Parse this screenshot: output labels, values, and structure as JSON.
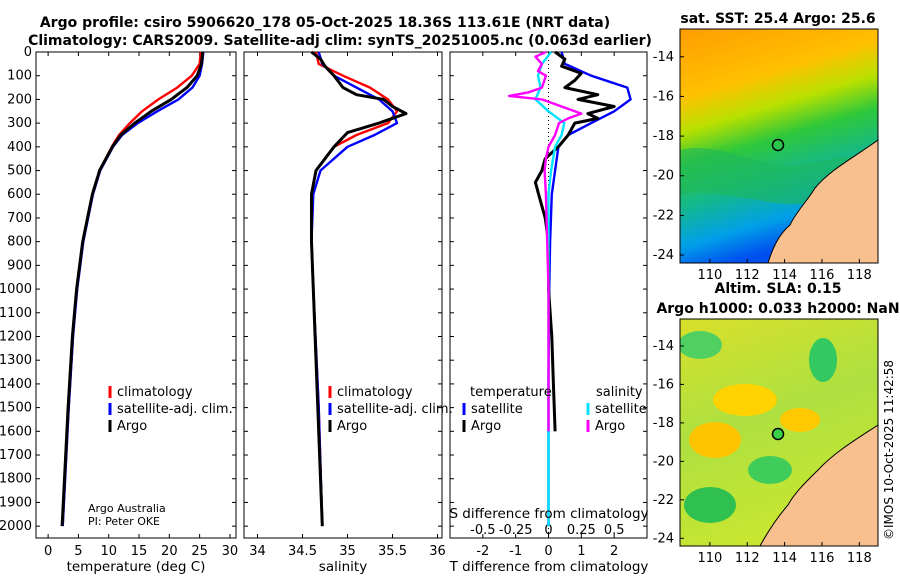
{
  "header": {
    "line1": "Argo profile: csiro 5906620_178 05-Oct-2025 18.36S 113.61E (NRT data)",
    "line2": "Climatology: CARS2009. Satellite-adj clim: synTS_20251005.nc (0.063d earlier)"
  },
  "credit": {
    "org": "Argo Australia",
    "pi": "PI: Peter OKE"
  },
  "watermark": "©IMOS 10-Oct-2025 11:42:58",
  "colors": {
    "climatology": "#ff0000",
    "satellite": "#0000ff",
    "argo": "#000000",
    "sat_salinity": "#00e5ff",
    "argo_salinity": "#ff00ff",
    "land": "#f9c08f"
  },
  "chart_data": [
    {
      "id": "temperature",
      "type": "line",
      "xlabel": "temperature (deg C)",
      "ylabel": "",
      "xlim": [
        -2,
        31
      ],
      "ylim": [
        0,
        2050
      ],
      "xticks": [
        0,
        5,
        10,
        15,
        20,
        25,
        30
      ],
      "yticks": [
        0,
        100,
        200,
        300,
        400,
        500,
        600,
        700,
        800,
        900,
        1000,
        1100,
        1200,
        1300,
        1400,
        1500,
        1600,
        1700,
        1800,
        1900,
        2000
      ],
      "legend": [
        "climatology",
        "satellite-adj. clim.",
        "Argo"
      ],
      "series": [
        {
          "name": "climatology",
          "color": "#ff0000",
          "depth": [
            0,
            50,
            100,
            150,
            200,
            250,
            300,
            350,
            400,
            500,
            600,
            700,
            800,
            1000,
            1200,
            1500,
            1800,
            2000
          ],
          "values": [
            25.2,
            25.0,
            23.7,
            21.3,
            18.2,
            15.5,
            13.5,
            11.7,
            10.5,
            8.5,
            7.3,
            6.5,
            5.7,
            4.7,
            4.1,
            3.4,
            2.8,
            2.4
          ]
        },
        {
          "name": "satellite-adj. clim.",
          "color": "#0000ff",
          "depth": [
            0,
            50,
            100,
            150,
            200,
            250,
            300,
            350,
            400,
            500,
            600,
            700,
            800,
            1000,
            1200,
            1500,
            1800,
            2000
          ],
          "values": [
            25.6,
            25.4,
            25.0,
            23.8,
            21.5,
            18.0,
            14.8,
            12.2,
            10.7,
            8.6,
            7.4,
            6.6,
            5.8,
            4.8,
            4.1,
            3.4,
            2.8,
            2.4
          ]
        },
        {
          "name": "Argo",
          "color": "#000000",
          "depth": [
            0,
            50,
            100,
            150,
            200,
            250,
            300,
            350,
            400,
            500,
            600,
            700,
            800,
            1000,
            1200,
            1500,
            1800,
            2000
          ],
          "values": [
            25.5,
            25.3,
            24.6,
            22.9,
            20.3,
            17.0,
            14.3,
            12.0,
            10.6,
            8.5,
            7.3,
            6.5,
            5.7,
            4.7,
            4.0,
            3.3,
            2.7,
            2.3
          ]
        }
      ]
    },
    {
      "id": "salinity",
      "type": "line",
      "xlabel": "salinity",
      "xlim": [
        33.85,
        36.05
      ],
      "ylim": [
        0,
        2050
      ],
      "xticks": [
        34,
        34.5,
        35,
        35.5,
        36
      ],
      "legend": [
        "climatology",
        "satellite-adj. clim.",
        "Argo"
      ],
      "series": [
        {
          "name": "climatology",
          "color": "#ff0000",
          "depth": [
            0,
            50,
            100,
            150,
            200,
            250,
            300,
            350,
            400,
            500,
            600,
            800,
            1000,
            1500,
            2000
          ],
          "values": [
            34.65,
            34.68,
            34.95,
            35.25,
            35.45,
            35.55,
            35.45,
            35.1,
            34.85,
            34.65,
            34.6,
            34.6,
            34.62,
            34.68,
            34.72
          ]
        },
        {
          "name": "satellite-adj. clim.",
          "color": "#0000ff",
          "depth": [
            0,
            50,
            100,
            150,
            200,
            250,
            300,
            350,
            400,
            500,
            600,
            800,
            1000,
            1500,
            2000
          ],
          "values": [
            34.68,
            34.72,
            34.85,
            35.1,
            35.35,
            35.5,
            35.55,
            35.3,
            35.0,
            34.7,
            34.62,
            34.6,
            34.62,
            34.68,
            34.72
          ]
        },
        {
          "name": "Argo",
          "color": "#000000",
          "depth": [
            0,
            30,
            60,
            100,
            150,
            180,
            200,
            230,
            260,
            300,
            340,
            400,
            500,
            600,
            800,
            1000,
            1500,
            2000
          ],
          "values": [
            34.6,
            34.7,
            34.75,
            34.85,
            34.95,
            35.1,
            35.4,
            35.5,
            35.65,
            35.35,
            35.0,
            34.85,
            34.65,
            34.6,
            34.6,
            34.62,
            34.67,
            34.72
          ]
        }
      ]
    },
    {
      "id": "difference",
      "type": "line",
      "xlabel": "T difference from climatology",
      "x2label": "S difference from climatology",
      "xlim": [
        -3,
        3
      ],
      "x2lim": [
        -0.75,
        0.75
      ],
      "ylim": [
        0,
        2050
      ],
      "xticks": [
        -2,
        -1,
        0,
        1,
        2
      ],
      "x2ticks": [
        -0.5,
        -0.25,
        0,
        0.25,
        0.5
      ],
      "x2ticklabels": [
        "-0.5",
        "-0.25",
        "0",
        "0.25",
        "0.5"
      ],
      "legend_temperature_title": "temperature",
      "legend_salinity_title": "salinity",
      "legend_temperature": [
        "satellite",
        "Argo"
      ],
      "legend_salinity": [
        "satellite",
        "Argo"
      ],
      "series": [
        {
          "name": "temperature satellite",
          "axis": "T",
          "color": "#0000ff",
          "depth": [
            0,
            50,
            100,
            150,
            200,
            250,
            300,
            350,
            400,
            500,
            600,
            800,
            1000,
            1400,
            1800,
            2000
          ],
          "values": [
            0.4,
            0.5,
            1.3,
            2.4,
            2.5,
            2.0,
            1.3,
            0.6,
            0.3,
            0.2,
            0.1,
            0.05,
            0.02,
            0.0,
            0.0,
            0.0
          ]
        },
        {
          "name": "temperature Argo",
          "axis": "T",
          "color": "#000000",
          "depth": [
            0,
            30,
            60,
            90,
            120,
            150,
            180,
            200,
            230,
            260,
            280,
            300,
            350,
            400,
            450,
            500,
            550,
            600,
            650,
            700,
            800,
            1000,
            1200,
            1400,
            1600
          ],
          "values": [
            0.2,
            0.5,
            0.4,
            1.0,
            0.8,
            0.5,
            1.5,
            0.9,
            2.0,
            1.2,
            1.5,
            0.8,
            0.6,
            0.3,
            -0.1,
            -0.2,
            -0.4,
            -0.3,
            -0.2,
            -0.1,
            0.0,
            0.0,
            0.1,
            0.15,
            0.2
          ]
        },
        {
          "name": "salinity satellite",
          "axis": "S",
          "color": "#00e5ff",
          "depth": [
            0,
            50,
            100,
            150,
            200,
            250,
            300,
            350,
            400,
            500,
            600,
            800,
            1000,
            1400,
            1800,
            2000
          ],
          "values": [
            0.02,
            -0.05,
            -0.08,
            -0.06,
            -0.1,
            0.0,
            0.12,
            0.1,
            0.05,
            0.02,
            0.0,
            0.0,
            0.0,
            0.0,
            0.0,
            0.0
          ]
        },
        {
          "name": "salinity Argo",
          "axis": "S",
          "color": "#ff00ff",
          "depth": [
            0,
            20,
            50,
            80,
            100,
            150,
            170,
            185,
            200,
            230,
            260,
            280,
            300,
            350,
            400,
            450,
            500,
            600,
            800,
            1000,
            1400,
            1600
          ],
          "values": [
            -0.02,
            -0.1,
            -0.05,
            -0.08,
            -0.02,
            -0.05,
            -0.15,
            -0.3,
            -0.05,
            0.1,
            0.25,
            0.15,
            0.08,
            0.05,
            0.0,
            -0.02,
            -0.03,
            -0.02,
            -0.01,
            0.0,
            0.0,
            0.0
          ]
        }
      ]
    },
    {
      "id": "sst_map",
      "type": "heatmap",
      "title": "sat. SST: 25.4 Argo: 25.6",
      "xticks": [
        110,
        112,
        114,
        116,
        118
      ],
      "yticks": [
        -14,
        -16,
        -18,
        -20,
        -22,
        -24
      ],
      "xlim": [
        108.4,
        119.0
      ],
      "ylim": [
        -24.4,
        -12.6
      ],
      "argo_position": {
        "lon": 113.61,
        "lat": -18.36
      }
    },
    {
      "id": "sla_map",
      "type": "heatmap",
      "title1": "Altim. SLA: 0.15",
      "title2": "Argo h1000: 0.033 h2000: NaN",
      "xticks": [
        110,
        112,
        114,
        116,
        118
      ],
      "yticks": [
        -14,
        -16,
        -18,
        -20,
        -22,
        -24
      ],
      "xlim": [
        108.4,
        119.0
      ],
      "ylim": [
        -24.4,
        -12.6
      ],
      "argo_position": {
        "lon": 113.61,
        "lat": -18.36
      }
    }
  ]
}
